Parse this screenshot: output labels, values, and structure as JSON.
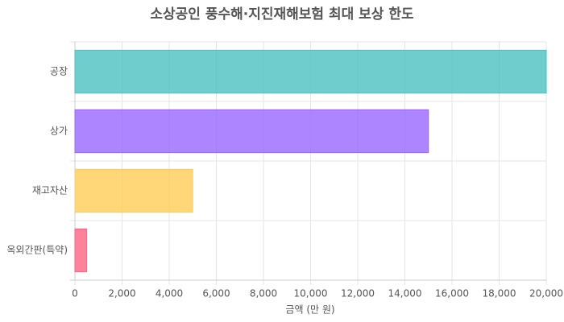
{
  "chart_data": {
    "type": "hbar",
    "title": "소상공인 풍수해·지진재해보험 최대 보상 한도",
    "x_label": "금액 (만 원)",
    "categories": [
      "공장",
      "상가",
      "재고자산",
      "옥외간판(특약)"
    ],
    "values": [
      20000,
      15000,
      5000,
      500
    ],
    "colors": [
      "#4bc0c0",
      "#9966ff",
      "#ffcd56",
      "#ff6384"
    ],
    "xlim": [
      0,
      20000
    ],
    "xticks": [
      0,
      {
        "value": 2000,
        "label": "2,000"
      },
      {
        "value": 4000,
        "label": "4,000"
      },
      {
        "value": 6000,
        "label": "6,000"
      },
      {
        "value": 8000,
        "label": "8,000"
      },
      {
        "value": 10000,
        "label": "10,000"
      },
      {
        "value": 12000,
        "label": "12,000"
      },
      {
        "value": 14000,
        "label": "14,000"
      },
      {
        "value": 16000,
        "label": "16,000"
      },
      {
        "value": 18000,
        "label": "18,000"
      },
      {
        "value": 20000,
        "label": "20,000"
      }
    ],
    "grid": true
  }
}
